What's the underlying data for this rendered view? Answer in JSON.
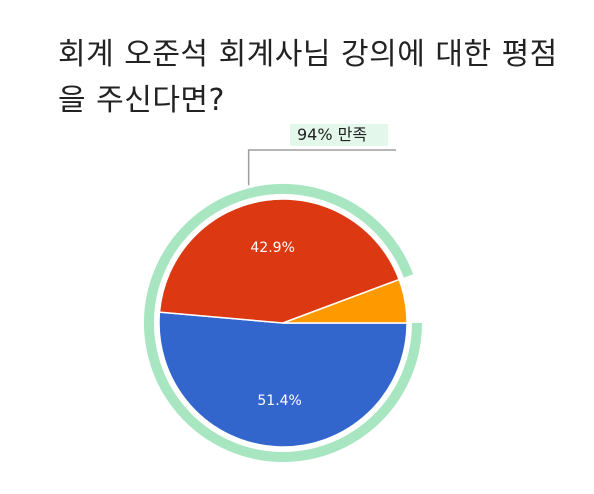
{
  "chart_data": {
    "type": "pie",
    "title": "회계 오준석 회계사님 강의에 대한 평점을 주신다면?",
    "slices": [
      {
        "label": "",
        "value": 51.4,
        "value_label": "51.4%",
        "color": "#3366cc"
      },
      {
        "label": "",
        "value": 42.9,
        "value_label": "42.9%",
        "color": "#dc3912"
      },
      {
        "label": "",
        "value": 5.7,
        "value_label": "",
        "color": "#ff9900"
      }
    ],
    "highlight_ring": {
      "label": "94% 만족",
      "color": "#a8e6c1"
    },
    "start_angle_deg": 90,
    "direction": "clockwise",
    "legend": "none"
  }
}
